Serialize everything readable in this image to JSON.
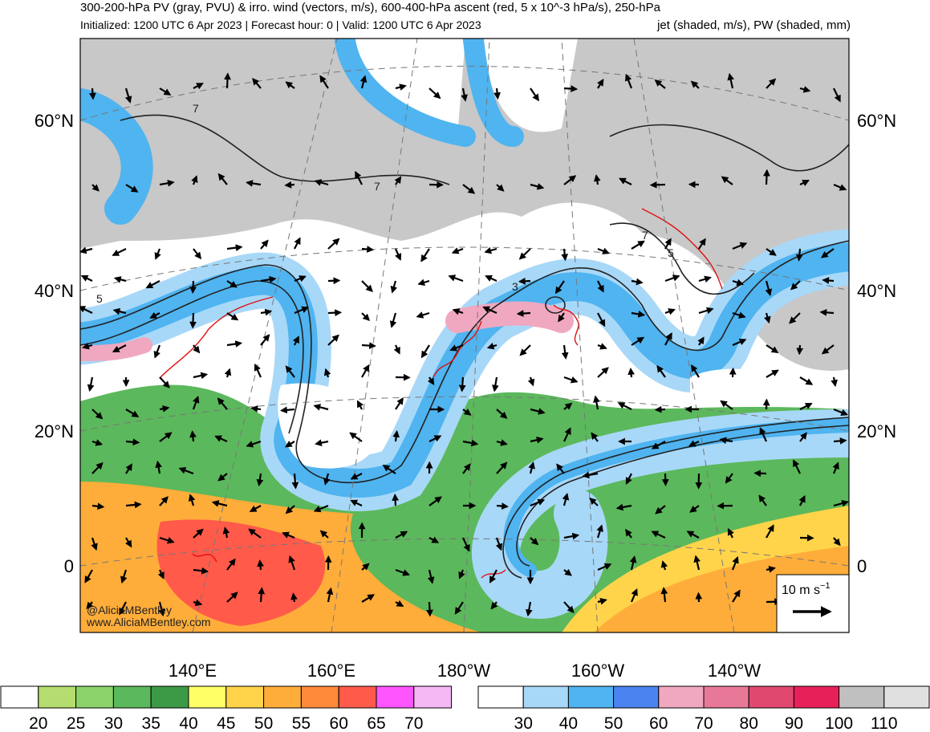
{
  "title": {
    "line1": "300-200-hPa PV (gray, PVU) & irro. wind (vectors, m/s), 600-400-hPa ascent (red, 5 x 10^-3 hPa/s), 250-hPa",
    "line2_left": "Initialized: 1200 UTC 6 Apr 2023 | Forecast hour: 0 | Valid: 1200 UTC 6 Apr 2023",
    "line2_right": "jet (shaded, m/s), PW (shaded, mm)"
  },
  "map": {
    "lat_labels": [
      "60°N",
      "40°N",
      "20°N",
      "0"
    ],
    "lon_labels": [
      "140°E",
      "160°E",
      "180°W",
      "160°W",
      "140°W"
    ],
    "contour_labels": [
      "7",
      "7",
      "7",
      "5",
      "5",
      "3"
    ],
    "credit": [
      "@AliciaMBentley",
      "www.AliciaMBentley.com"
    ],
    "reference_vector": {
      "label": "10 m s",
      "exponent": "−1"
    }
  },
  "pw_colorbar": {
    "colors": [
      "#ffffff",
      "#b5dc6f",
      "#8cd26a",
      "#5cb85c",
      "#3c9a46",
      "#ffff66",
      "#ffd44a",
      "#ffad3a",
      "#ff8a3a",
      "#ff5a4a",
      "#ff55ff",
      "#f5b8f5"
    ],
    "labels": [
      20,
      25,
      30,
      35,
      40,
      45,
      50,
      55,
      60,
      65,
      70
    ]
  },
  "jet_colorbar": {
    "colors": [
      "#ffffff",
      "#a8d8f8",
      "#4fb4f0",
      "#4a84f0",
      "#f0a8c0",
      "#e87898",
      "#e04870",
      "#e8205a",
      "#c0c0c0",
      "#e0e0e0"
    ],
    "labels": [
      30,
      40,
      50,
      60,
      70,
      80,
      90,
      100,
      110
    ]
  }
}
